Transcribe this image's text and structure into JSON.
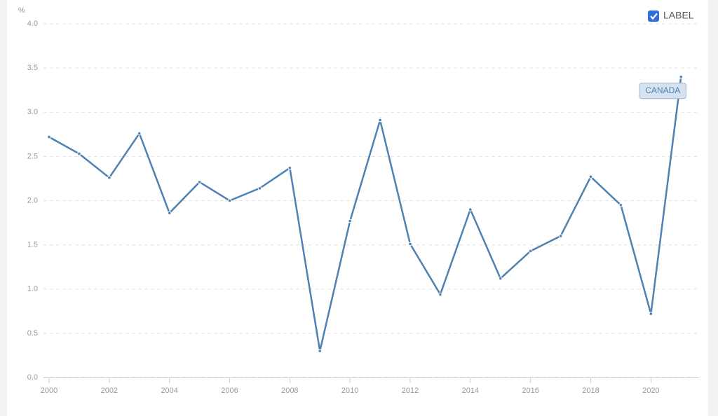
{
  "chart_data": {
    "type": "line",
    "y_unit": "%",
    "label_toggle": "LABEL",
    "x": [
      2000,
      2001,
      2002,
      2003,
      2004,
      2005,
      2006,
      2007,
      2008,
      2009,
      2010,
      2011,
      2012,
      2013,
      2014,
      2015,
      2016,
      2017,
      2018,
      2019,
      2020,
      2021
    ],
    "series": [
      {
        "name": "CANADA",
        "color": "#4e81b4",
        "values": [
          2.72,
          2.53,
          2.26,
          2.76,
          1.86,
          2.21,
          2.0,
          2.14,
          2.37,
          0.3,
          1.77,
          2.91,
          1.51,
          0.94,
          1.9,
          1.12,
          1.43,
          1.6,
          2.27,
          1.95,
          0.72,
          3.4
        ]
      }
    ],
    "xlim": [
      2000,
      2021.6
    ],
    "xticks": [
      2000,
      2002,
      2004,
      2006,
      2008,
      2010,
      2012,
      2014,
      2016,
      2018,
      2020
    ],
    "ylim": [
      0,
      4
    ],
    "yticks": [
      {
        "value": 0,
        "label": "0.0"
      },
      {
        "value": 0.5,
        "label": "0.5"
      },
      {
        "value": 1,
        "label": "1.0"
      },
      {
        "value": 1.5,
        "label": "1.5"
      },
      {
        "value": 2,
        "label": "2.0"
      },
      {
        "value": 2.5,
        "label": "2.5"
      },
      {
        "value": 3,
        "label": "3.0"
      },
      {
        "value": 3.5,
        "label": "3.5"
      },
      {
        "value": 4,
        "label": "4.0"
      }
    ],
    "grid": true
  }
}
